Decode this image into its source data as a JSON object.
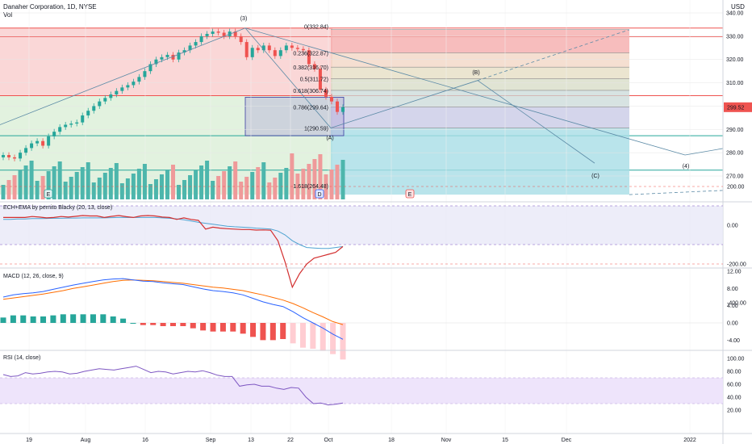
{
  "header": {
    "title": "Danaher Corporation, 1D, NYSE",
    "vol_label": "Vol",
    "currency": "USD"
  },
  "price_axis": {
    "ticks": [
      "340.00",
      "330.00",
      "320.00",
      "310.00",
      "300.00",
      "290.00",
      "280.00",
      "270.00"
    ],
    "last_price": "299.52"
  },
  "time_axis": {
    "labels": [
      "19",
      "Aug",
      "16",
      "Sep",
      "13",
      "22",
      "Oct",
      "18",
      "Nov",
      "15",
      "Dec",
      "2022"
    ]
  },
  "fib": [
    {
      "label": "0(332.84)"
    },
    {
      "label": "0.236(322.87)"
    },
    {
      "label": "0.382(316.70)"
    },
    {
      "label": "0.5(311.72)"
    },
    {
      "label": "0.618(306.74)"
    },
    {
      "label": "0.786(299.64)"
    },
    {
      "label": "1(290.59)"
    },
    {
      "label": "1.618(264.48)"
    }
  ],
  "waves": [
    {
      "label": "(3)"
    },
    {
      "label": "(A)"
    },
    {
      "label": "(B)"
    },
    {
      "label": "(C)"
    },
    {
      "label": "(4)"
    }
  ],
  "markers": [
    {
      "label": "E"
    },
    {
      "label": "D"
    },
    {
      "label": "E"
    }
  ],
  "panels": {
    "ech": {
      "title": "ECH+EMA by pernito Blacky (20, 13, close)",
      "ticks": [
        "200.00",
        "0.00",
        "-200.00",
        "-400.00"
      ]
    },
    "macd": {
      "title": "MACD (12, 26, close, 9)",
      "ticks": [
        "12.00",
        "8.00",
        "4.00",
        "0.00",
        "-4.00"
      ]
    },
    "rsi": {
      "title": "RSI (14, close)",
      "ticks": [
        "100.00",
        "80.00",
        "60.00",
        "40.00",
        "20.00"
      ]
    }
  },
  "colors": {
    "up": "#26a69a",
    "down": "#ef5350",
    "fib_red": "#f8c9c9",
    "fib_green": "#d6ecd2",
    "fib_blue": "#a8dde6",
    "rsi_band": "#ece1fb",
    "macd_line": "#2962ff",
    "signal_line": "#ff6d00"
  },
  "chart_data": {
    "type": "candlestick",
    "title": "Danaher Corporation, 1D, NYSE",
    "ylabel": "USD",
    "ylim": [
      262,
      342
    ],
    "x_labels": [
      "19",
      "Aug",
      "16",
      "Sep",
      "13",
      "22",
      "Oct",
      "18",
      "Nov",
      "15",
      "Dec",
      "2022"
    ],
    "last_close": 299.52,
    "close": [
      279.0,
      278.0,
      277.5,
      280.0,
      282.0,
      284.0,
      285.0,
      283.0,
      287.0,
      289.0,
      291.0,
      292.0,
      292.5,
      293.0,
      296.0,
      298.0,
      300.0,
      302.0,
      303.5,
      305.0,
      306.5,
      308.0,
      309.0,
      310.5,
      312.5,
      315.0,
      318.0,
      320.0,
      321.0,
      322.0,
      320.0,
      323.0,
      324.0,
      326.0,
      327.5,
      330.0,
      331.0,
      332.0,
      331.5,
      330.0,
      332.0,
      330.0,
      327.5,
      321.0,
      325.0,
      324.0,
      326.0,
      324.0,
      321.5,
      324.0,
      326.0,
      325.0,
      324.5,
      324.0,
      318.0,
      316.0,
      307.0,
      304.0,
      302.0,
      297.5,
      299.52
    ],
    "rsi": [
      75,
      72,
      73,
      78,
      76,
      77,
      79,
      80,
      79,
      76,
      77,
      80,
      82,
      84,
      83,
      82,
      84,
      86,
      88,
      83,
      78,
      80,
      79,
      76,
      78,
      80,
      79,
      81,
      78,
      74,
      72,
      72,
      57,
      59,
      60,
      57,
      57,
      54,
      52,
      55,
      54,
      40,
      30,
      31,
      28,
      29,
      31
    ],
    "macd": [
      6.0,
      6.5,
      6.8,
      7.0,
      7.3,
      7.8,
      8.3,
      8.8,
      9.2,
      9.6,
      10.0,
      10.2,
      10.3,
      10.0,
      9.7,
      9.6,
      9.3,
      9.1,
      8.9,
      8.4,
      7.9,
      7.5,
      7.3,
      7.0,
      6.5,
      5.7,
      4.9,
      4.3,
      3.8,
      2.6,
      1.2,
      0.0,
      -1.2,
      -2.6,
      -3.8
    ],
    "macd_signal": [
      5.5,
      5.8,
      6.1,
      6.4,
      6.7,
      7.1,
      7.5,
      8.0,
      8.4,
      8.8,
      9.2,
      9.6,
      9.9,
      10.0,
      9.9,
      9.8,
      9.6,
      9.4,
      9.2,
      8.9,
      8.6,
      8.3,
      8.1,
      7.8,
      7.5,
      7.0,
      6.5,
      5.9,
      5.3,
      4.5,
      3.5,
      2.4,
      1.4,
      0.3,
      -0.4
    ],
    "ech_line": [
      40,
      40,
      40,
      40,
      45,
      42,
      38,
      40,
      45,
      42,
      46,
      50,
      48,
      48,
      40,
      46,
      50,
      44,
      40,
      48,
      50,
      48,
      42,
      40,
      30,
      38,
      30,
      25,
      -20,
      -10,
      -15,
      -18,
      -20,
      -22,
      -22,
      -25,
      -24,
      -26,
      -80,
      -190,
      -320,
      -250,
      -200,
      -170,
      -160,
      -150,
      -140,
      -110
    ],
    "ech_ema": [
      30,
      30,
      32,
      32,
      34,
      34,
      35,
      36,
      36,
      37,
      37,
      38,
      38,
      38,
      38,
      39,
      40,
      40,
      40,
      40,
      40,
      40,
      38,
      36,
      33,
      28,
      22,
      15,
      10,
      5,
      0,
      -5,
      -8,
      -10,
      -12,
      -15,
      -17,
      -20,
      -30,
      -50,
      -80,
      -100,
      -115,
      -118,
      -120,
      -120,
      -115,
      -110
    ]
  }
}
